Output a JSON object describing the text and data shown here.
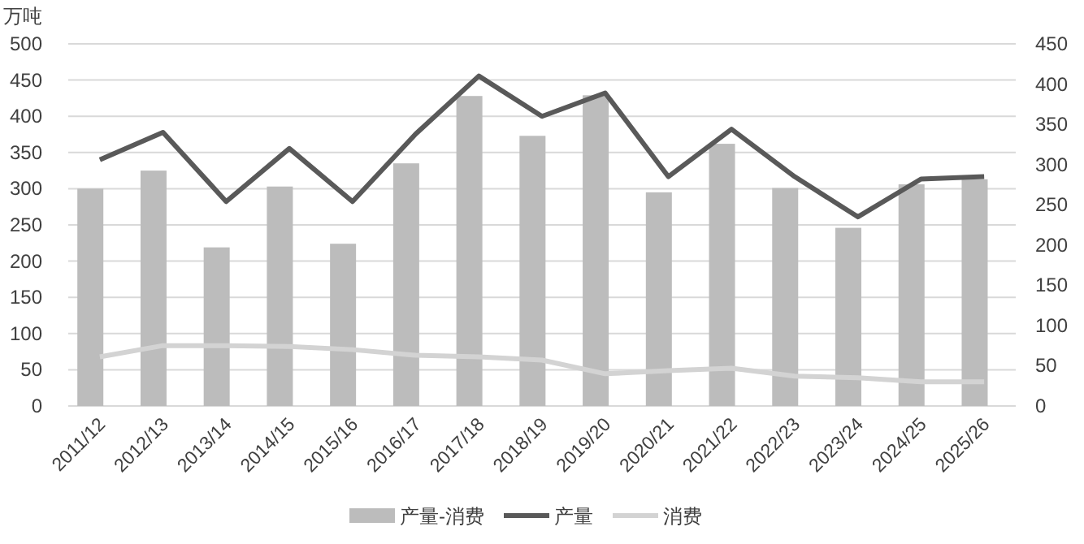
{
  "chart_data": {
    "type": "bar",
    "ylabel": "万吨",
    "categories": [
      "2011/12",
      "2012/13",
      "2013/14",
      "2014/15",
      "2015/16",
      "2016/17",
      "2017/18",
      "2018/19",
      "2019/20",
      "2020/21",
      "2021/22",
      "2022/23",
      "2023/24",
      "2024/25",
      "2025/26"
    ],
    "series": [
      {
        "name": "产量-消费",
        "color": "#bcbcbc",
        "values": [
          300,
          325,
          219,
          303,
          224,
          335,
          428,
          373,
          429,
          295,
          362,
          301,
          246,
          306,
          313
        ]
      },
      {
        "name": "产量",
        "type": "line",
        "axis": "y2",
        "color": "#595959",
        "values": [
          306,
          340,
          254,
          320,
          254,
          338,
          410,
          360,
          389,
          285,
          344,
          285,
          235,
          282,
          285
        ]
      },
      {
        "name": "消费",
        "type": "line",
        "axis": "y2",
        "color": "#d3d3d3",
        "values": [
          61,
          75,
          75,
          74,
          70,
          63,
          61,
          57,
          40,
          44,
          47,
          37,
          35,
          30,
          30
        ]
      }
    ],
    "ylim": [
      0,
      500
    ],
    "yticks": [
      0,
      50,
      100,
      150,
      200,
      250,
      300,
      350,
      400,
      450,
      500
    ],
    "y2lim": [
      0,
      450
    ],
    "y2ticks": [
      0,
      50,
      100,
      150,
      200,
      250,
      300,
      350,
      400,
      450
    ],
    "grid": "y",
    "legend": "bottom",
    "marker": "none",
    "line_style": "solid"
  }
}
